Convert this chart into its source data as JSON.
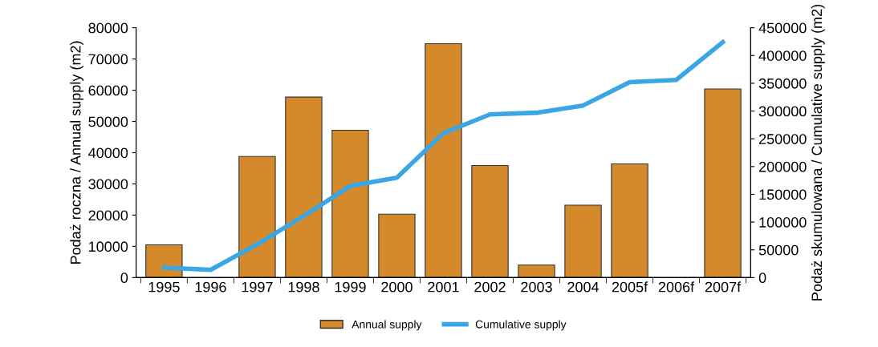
{
  "chart_data": {
    "type": "bar",
    "ylabel": "Podaż roczna / Annual supply (m2)",
    "y2label": "Podaż skumulowana / Cumulative supply (m2)",
    "categories": [
      "1995",
      "1996",
      "1997",
      "1998",
      "1999",
      "2000",
      "2001",
      "2002",
      "2003",
      "2004",
      "2005f",
      "2006f",
      "2007f"
    ],
    "series": [
      {
        "name": "Annual supply",
        "color": "#d4892a",
        "values": [
          10500,
          null,
          38800,
          57800,
          47200,
          20300,
          74900,
          35900,
          4000,
          23200,
          36400,
          null,
          60400
        ]
      },
      {
        "name": "Cumulative supply",
        "type": "line",
        "axis": "y2",
        "color": "#3aa6e4",
        "values": [
          18000,
          14000,
          60000,
          111000,
          165000,
          180000,
          260000,
          294000,
          297000,
          310000,
          352000,
          356000,
          424000
        ]
      }
    ],
    "ylim": [
      0,
      80000
    ],
    "yticks": [
      0,
      10000,
      20000,
      30000,
      40000,
      50000,
      60000,
      70000,
      80000
    ],
    "y2lim": [
      0,
      450000
    ],
    "y2ticks": [
      0,
      50000,
      100000,
      150000,
      200000,
      250000,
      300000,
      350000,
      400000,
      450000
    ],
    "grid": false,
    "legend": "bottom",
    "marker": "none",
    "line_style": "solid"
  }
}
